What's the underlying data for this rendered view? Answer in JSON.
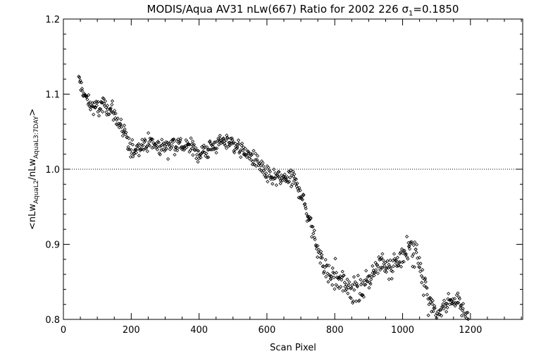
{
  "chart_data": {
    "type": "scatter",
    "title": "MODIS/Aqua AV31 nLw(667) Ratio for 2002 226 σ",
    "title_sub": "1",
    "title_tail": "=0.1850",
    "xlabel": "Scan Pixel",
    "ylabel_parts": [
      "<nLw",
      "AquaL2",
      "/nLw",
      "AquaL3:7DAY",
      ">"
    ],
    "xlim": [
      0,
      1354
    ],
    "ylim": [
      0.8,
      1.2
    ],
    "xticks": [
      "0",
      "200",
      "400",
      "600",
      "800",
      "1000",
      "1200"
    ],
    "yticks": [
      "0.8",
      "0.9",
      "1.0",
      "1.1",
      "1.2"
    ],
    "reference_line": 1.0,
    "marker": "diamond-outline",
    "grid": false,
    "trend_x": [
      45,
      60,
      80,
      100,
      120,
      140,
      160,
      180,
      200,
      220,
      240,
      260,
      280,
      300,
      320,
      340,
      360,
      380,
      400,
      420,
      440,
      460,
      480,
      500,
      520,
      540,
      560,
      580,
      600,
      620,
      640,
      660,
      680,
      700,
      720,
      740,
      760,
      780,
      800,
      820,
      840,
      860,
      880,
      900,
      920,
      940,
      960,
      980,
      1000,
      1020,
      1040,
      1060,
      1080,
      1100,
      1120,
      1140,
      1160,
      1180,
      1200
    ],
    "trend_y": [
      1.12,
      1.1,
      1.085,
      1.08,
      1.085,
      1.08,
      1.065,
      1.045,
      1.025,
      1.03,
      1.035,
      1.035,
      1.03,
      1.03,
      1.035,
      1.033,
      1.03,
      1.03,
      1.02,
      1.025,
      1.03,
      1.035,
      1.038,
      1.035,
      1.028,
      1.02,
      1.015,
      1.005,
      0.99,
      0.99,
      0.985,
      0.99,
      0.985,
      0.97,
      0.94,
      0.91,
      0.88,
      0.86,
      0.855,
      0.85,
      0.845,
      0.84,
      0.84,
      0.855,
      0.87,
      0.875,
      0.865,
      0.875,
      0.885,
      0.895,
      0.89,
      0.86,
      0.82,
      0.8,
      0.815,
      0.825,
      0.825,
      0.81,
      0.8
    ],
    "noise_sd": 0.011,
    "approx_points": 720
  }
}
